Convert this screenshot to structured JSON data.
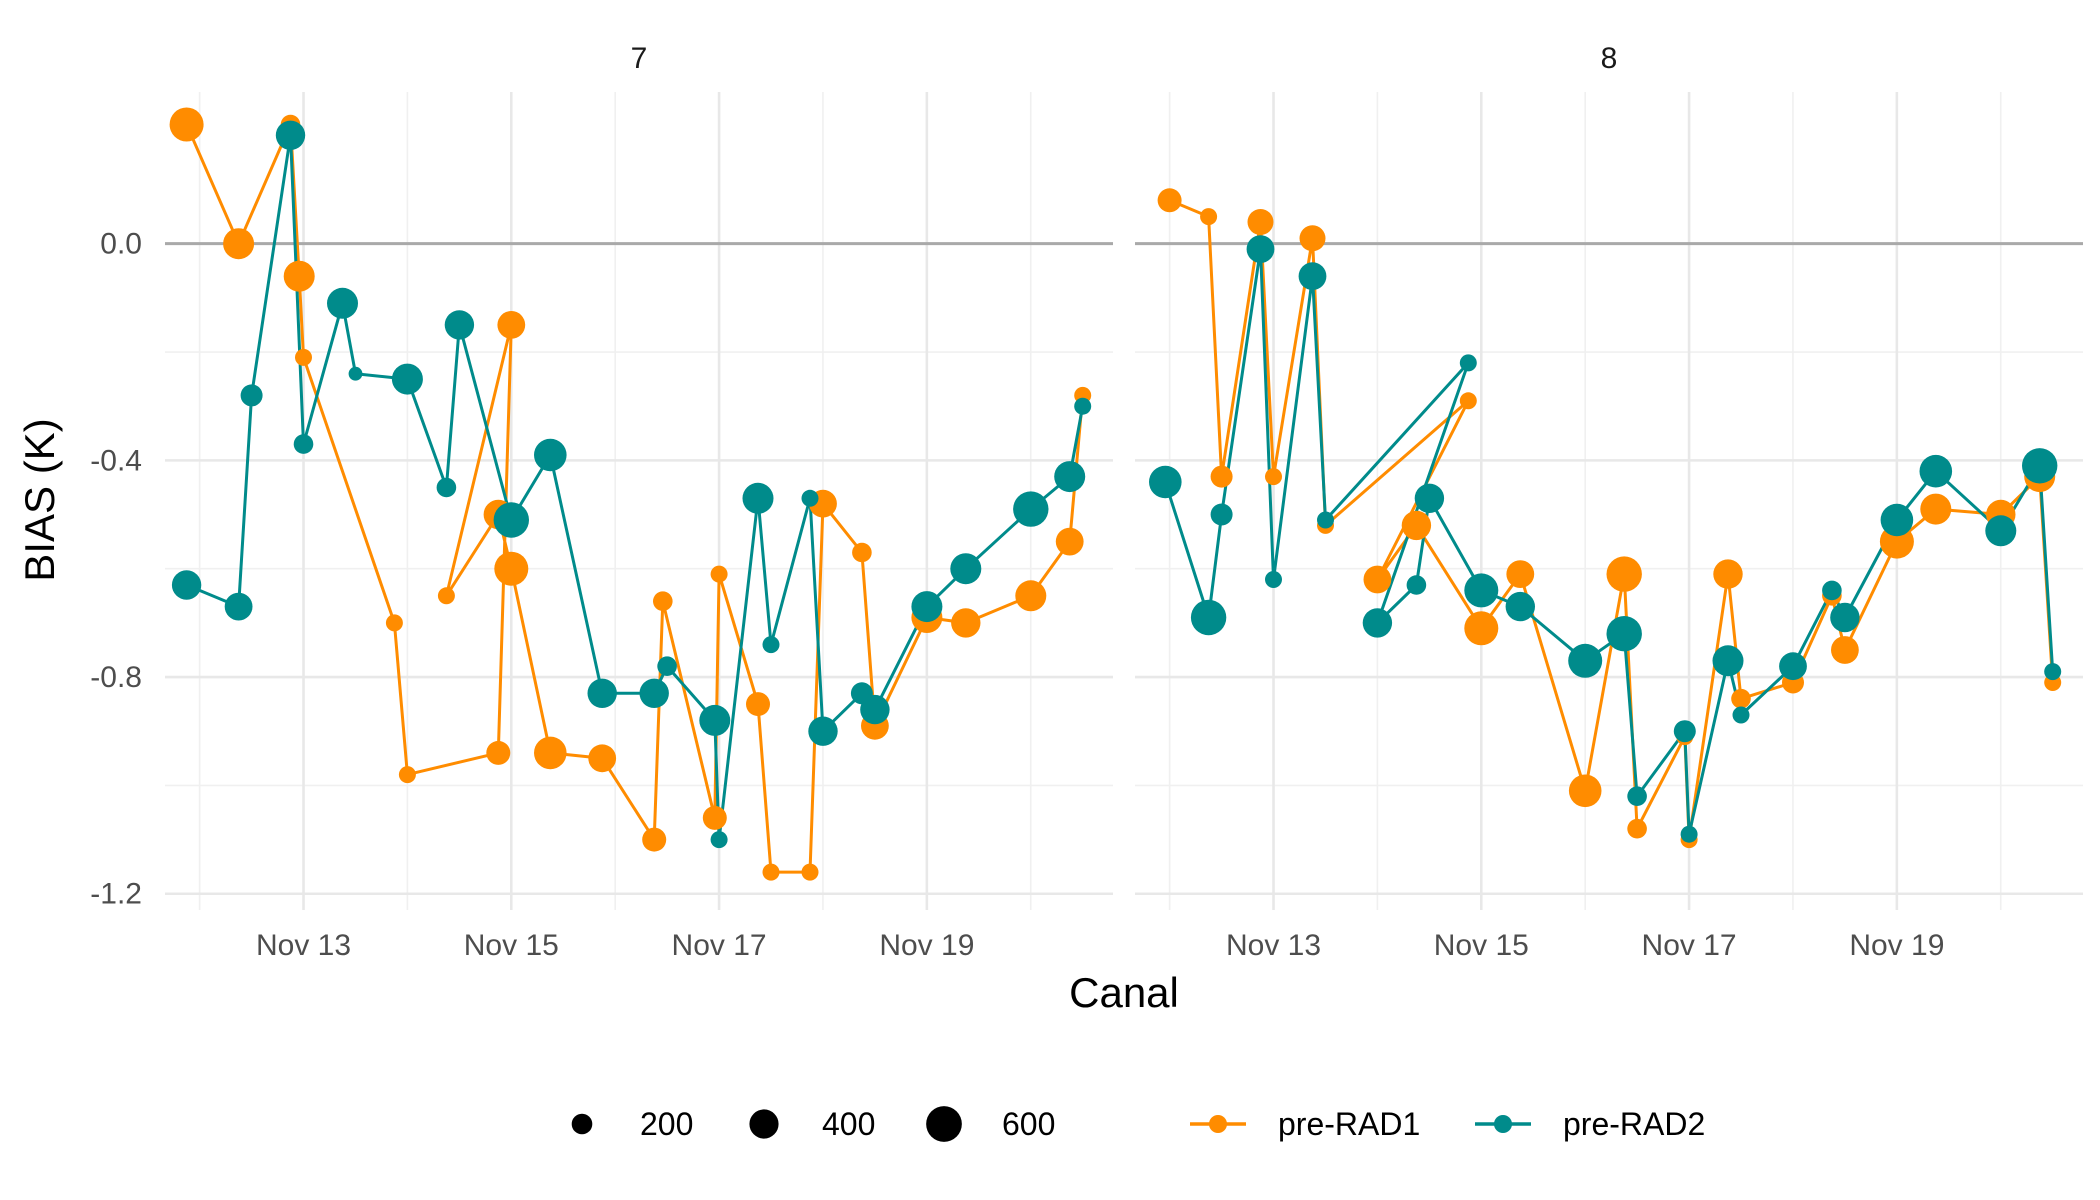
{
  "chart_data": {
    "type": "line",
    "x_unit": "date",
    "xlabel": "Canal",
    "ylabel": "BIAS (K)",
    "ylim": [
      -1.23,
      0.28
    ],
    "yticks": [
      0.0,
      -0.4,
      -0.8,
      -1.2
    ],
    "ytick_labels": [
      "0.0",
      "-0.4",
      "-0.8",
      "-1.2"
    ],
    "xlim": [
      "2023-11-11 16:00",
      "2023-11-20 19:00"
    ],
    "xticks": [
      "2023-11-13",
      "2023-11-15",
      "2023-11-17",
      "2023-11-19"
    ],
    "xtick_labels": [
      "Nov 13",
      "Nov 15",
      "Nov 17",
      "Nov 19"
    ],
    "x_minor_ticks": [
      "2023-11-12",
      "2023-11-14",
      "2023-11-16",
      "2023-11-18",
      "2023-11-20"
    ],
    "grid": true,
    "reference_line": 0.0,
    "size_legend": {
      "labels": [
        "200",
        "400",
        "600"
      ],
      "values": [
        200,
        400,
        600
      ]
    },
    "series_legend": {
      "labels": [
        "pre-RAD1",
        "pre-RAD2"
      ],
      "colors": [
        "#FF8C00",
        "#008B8B"
      ]
    },
    "panels": [
      {
        "title": "7",
        "series": [
          {
            "name": "pre-RAD1",
            "color": "#FF8C00",
            "points": [
              {
                "x": "2023-11-11 21:00",
                "y": 0.22,
                "n": 600
              },
              {
                "x": "2023-11-12 09:00",
                "y": 0.0,
                "n": 500
              },
              {
                "x": "2023-11-12 21:00",
                "y": 0.22,
                "n": 200
              },
              {
                "x": "2023-11-12 23:00",
                "y": -0.06,
                "n": 500
              },
              {
                "x": "2023-11-13 00:00",
                "y": -0.21,
                "n": 150
              },
              {
                "x": "2023-11-13 21:00",
                "y": -0.7,
                "n": 150
              },
              {
                "x": "2023-11-14 00:00",
                "y": -0.98,
                "n": 150
              },
              {
                "x": "2023-11-14 21:00",
                "y": -0.94,
                "n": 300
              },
              {
                "x": "2023-11-15 00:00",
                "y": -0.15,
                "n": 400
              },
              {
                "x": "2023-11-14 09:00",
                "y": -0.65,
                "n": 150
              },
              {
                "x": "2023-11-14 21:00",
                "y": -0.5,
                "n": 450
              },
              {
                "x": "2023-11-15 00:00",
                "y": -0.6,
                "n": 600
              },
              {
                "x": "2023-11-15 09:00",
                "y": -0.94,
                "n": 550
              },
              {
                "x": "2023-11-15 21:00",
                "y": -0.95,
                "n": 400
              },
              {
                "x": "2023-11-16 09:00",
                "y": -1.1,
                "n": 300
              },
              {
                "x": "2023-11-16 11:00",
                "y": -0.66,
                "n": 200
              },
              {
                "x": "2023-11-16 23:00",
                "y": -1.06,
                "n": 300
              },
              {
                "x": "2023-11-17 00:00",
                "y": -0.61,
                "n": 150
              },
              {
                "x": "2023-11-17 09:00",
                "y": -0.85,
                "n": 300
              },
              {
                "x": "2023-11-17 12:00",
                "y": -1.16,
                "n": 150
              },
              {
                "x": "2023-11-17 21:00",
                "y": -1.16,
                "n": 150
              },
              {
                "x": "2023-11-18 00:00",
                "y": -0.48,
                "n": 400
              },
              {
                "x": "2023-11-18 09:00",
                "y": -0.57,
                "n": 200
              },
              {
                "x": "2023-11-18 12:00",
                "y": -0.89,
                "n": 400
              },
              {
                "x": "2023-11-19 00:00",
                "y": -0.69,
                "n": 500
              },
              {
                "x": "2023-11-19 09:00",
                "y": -0.7,
                "n": 450
              },
              {
                "x": "2023-11-20 00:00",
                "y": -0.65,
                "n": 500
              },
              {
                "x": "2023-11-20 09:00",
                "y": -0.55,
                "n": 400
              },
              {
                "x": "2023-11-20 12:00",
                "y": -0.28,
                "n": 150
              }
            ]
          },
          {
            "name": "pre-RAD2",
            "color": "#008B8B",
            "points": [
              {
                "x": "2023-11-11 21:00",
                "y": -0.63,
                "n": 450
              },
              {
                "x": "2023-11-12 09:00",
                "y": -0.67,
                "n": 400
              },
              {
                "x": "2023-11-12 12:00",
                "y": -0.28,
                "n": 250
              },
              {
                "x": "2023-11-12 21:00",
                "y": 0.2,
                "n": 450
              },
              {
                "x": "2023-11-13 00:00",
                "y": -0.37,
                "n": 200
              },
              {
                "x": "2023-11-13 09:00",
                "y": -0.11,
                "n": 500
              },
              {
                "x": "2023-11-13 12:00",
                "y": -0.24,
                "n": 100
              },
              {
                "x": "2023-11-14 00:00",
                "y": -0.25,
                "n": 500
              },
              {
                "x": "2023-11-14 09:00",
                "y": -0.45,
                "n": 200
              },
              {
                "x": "2023-11-14 12:00",
                "y": -0.15,
                "n": 450
              },
              {
                "x": "2023-11-15 00:00",
                "y": -0.51,
                "n": 650
              },
              {
                "x": "2023-11-15 09:00",
                "y": -0.39,
                "n": 550
              },
              {
                "x": "2023-11-15 21:00",
                "y": -0.83,
                "n": 450
              },
              {
                "x": "2023-11-16 09:00",
                "y": -0.83,
                "n": 450
              },
              {
                "x": "2023-11-16 12:00",
                "y": -0.78,
                "n": 200
              },
              {
                "x": "2023-11-16 23:00",
                "y": -0.88,
                "n": 500
              },
              {
                "x": "2023-11-17 00:00",
                "y": -1.1,
                "n": 150
              },
              {
                "x": "2023-11-17 09:00",
                "y": -0.47,
                "n": 500
              },
              {
                "x": "2023-11-17 12:00",
                "y": -0.74,
                "n": 150
              },
              {
                "x": "2023-11-17 21:00",
                "y": -0.47,
                "n": 150
              },
              {
                "x": "2023-11-18 00:00",
                "y": -0.9,
                "n": 450
              },
              {
                "x": "2023-11-18 09:00",
                "y": -0.83,
                "n": 250
              },
              {
                "x": "2023-11-18 12:00",
                "y": -0.86,
                "n": 450
              },
              {
                "x": "2023-11-19 00:00",
                "y": -0.67,
                "n": 500
              },
              {
                "x": "2023-11-19 09:00",
                "y": -0.6,
                "n": 500
              },
              {
                "x": "2023-11-20 00:00",
                "y": -0.49,
                "n": 650
              },
              {
                "x": "2023-11-20 09:00",
                "y": -0.43,
                "n": 500
              },
              {
                "x": "2023-11-20 12:00",
                "y": -0.3,
                "n": 150
              }
            ]
          }
        ]
      },
      {
        "title": "8",
        "series": [
          {
            "name": "pre-RAD1",
            "color": "#FF8C00",
            "points": [
              {
                "x": "2023-11-12 00:00",
                "y": 0.08,
                "n": 300
              },
              {
                "x": "2023-11-12 09:00",
                "y": 0.05,
                "n": 150
              },
              {
                "x": "2023-11-12 12:00",
                "y": -0.43,
                "n": 250
              },
              {
                "x": "2023-11-12 21:00",
                "y": 0.04,
                "n": 350
              },
              {
                "x": "2023-11-13 00:00",
                "y": -0.43,
                "n": 150
              },
              {
                "x": "2023-11-13 09:00",
                "y": 0.01,
                "n": 350
              },
              {
                "x": "2023-11-13 12:00",
                "y": -0.52,
                "n": 150
              },
              {
                "x": "2023-11-14 21:00",
                "y": -0.29,
                "n": 150
              },
              {
                "x": "2023-11-14 00:00",
                "y": -0.62,
                "n": 400
              },
              {
                "x": "2023-11-14 09:00",
                "y": -0.52,
                "n": 450
              },
              {
                "x": "2023-11-15 00:00",
                "y": -0.71,
                "n": 600
              },
              {
                "x": "2023-11-15 09:00",
                "y": -0.61,
                "n": 400
              },
              {
                "x": "2023-11-16 00:00",
                "y": -1.01,
                "n": 550
              },
              {
                "x": "2023-11-16 09:00",
                "y": -0.61,
                "n": 650
              },
              {
                "x": "2023-11-16 12:00",
                "y": -1.08,
                "n": 200
              },
              {
                "x": "2023-11-16 23:00",
                "y": -0.91,
                "n": 150
              },
              {
                "x": "2023-11-17 00:00",
                "y": -1.1,
                "n": 150
              },
              {
                "x": "2023-11-17 09:00",
                "y": -0.61,
                "n": 450
              },
              {
                "x": "2023-11-17 12:00",
                "y": -0.84,
                "n": 200
              },
              {
                "x": "2023-11-18 00:00",
                "y": -0.81,
                "n": 250
              },
              {
                "x": "2023-11-18 09:00",
                "y": -0.65,
                "n": 200
              },
              {
                "x": "2023-11-18 12:00",
                "y": -0.75,
                "n": 400
              },
              {
                "x": "2023-11-19 00:00",
                "y": -0.55,
                "n": 600
              },
              {
                "x": "2023-11-19 09:00",
                "y": -0.49,
                "n": 500
              },
              {
                "x": "2023-11-20 00:00",
                "y": -0.5,
                "n": 450
              },
              {
                "x": "2023-11-20 09:00",
                "y": -0.43,
                "n": 500
              },
              {
                "x": "2023-11-20 12:00",
                "y": -0.81,
                "n": 150
              }
            ]
          },
          {
            "name": "pre-RAD2",
            "color": "#008B8B",
            "points": [
              {
                "x": "2023-11-11 23:00",
                "y": -0.44,
                "n": 550
              },
              {
                "x": "2023-11-12 09:00",
                "y": -0.69,
                "n": 650
              },
              {
                "x": "2023-11-12 12:00",
                "y": -0.5,
                "n": 250
              },
              {
                "x": "2023-11-12 21:00",
                "y": -0.01,
                "n": 400
              },
              {
                "x": "2023-11-13 00:00",
                "y": -0.62,
                "n": 150
              },
              {
                "x": "2023-11-13 09:00",
                "y": -0.06,
                "n": 400
              },
              {
                "x": "2023-11-13 12:00",
                "y": -0.51,
                "n": 150
              },
              {
                "x": "2023-11-14 21:00",
                "y": -0.22,
                "n": 150
              },
              {
                "x": "2023-11-14 00:00",
                "y": -0.7,
                "n": 450
              },
              {
                "x": "2023-11-14 09:00",
                "y": -0.63,
                "n": 200
              },
              {
                "x": "2023-11-14 12:00",
                "y": -0.47,
                "n": 450
              },
              {
                "x": "2023-11-15 00:00",
                "y": -0.64,
                "n": 600
              },
              {
                "x": "2023-11-15 09:00",
                "y": -0.67,
                "n": 450
              },
              {
                "x": "2023-11-16 00:00",
                "y": -0.77,
                "n": 600
              },
              {
                "x": "2023-11-16 09:00",
                "y": -0.72,
                "n": 650
              },
              {
                "x": "2023-11-16 12:00",
                "y": -1.02,
                "n": 200
              },
              {
                "x": "2023-11-16 23:00",
                "y": -0.9,
                "n": 250
              },
              {
                "x": "2023-11-17 00:00",
                "y": -1.09,
                "n": 150
              },
              {
                "x": "2023-11-17 09:00",
                "y": -0.77,
                "n": 500
              },
              {
                "x": "2023-11-17 12:00",
                "y": -0.87,
                "n": 150
              },
              {
                "x": "2023-11-18 00:00",
                "y": -0.78,
                "n": 400
              },
              {
                "x": "2023-11-18 09:00",
                "y": -0.64,
                "n": 200
              },
              {
                "x": "2023-11-18 12:00",
                "y": -0.69,
                "n": 450
              },
              {
                "x": "2023-11-19 00:00",
                "y": -0.51,
                "n": 550
              },
              {
                "x": "2023-11-19 09:00",
                "y": -0.42,
                "n": 550
              },
              {
                "x": "2023-11-20 00:00",
                "y": -0.53,
                "n": 500
              },
              {
                "x": "2023-11-20 09:00",
                "y": -0.41,
                "n": 650
              },
              {
                "x": "2023-11-20 12:00",
                "y": -0.79,
                "n": 150
              }
            ]
          }
        ]
      }
    ]
  }
}
